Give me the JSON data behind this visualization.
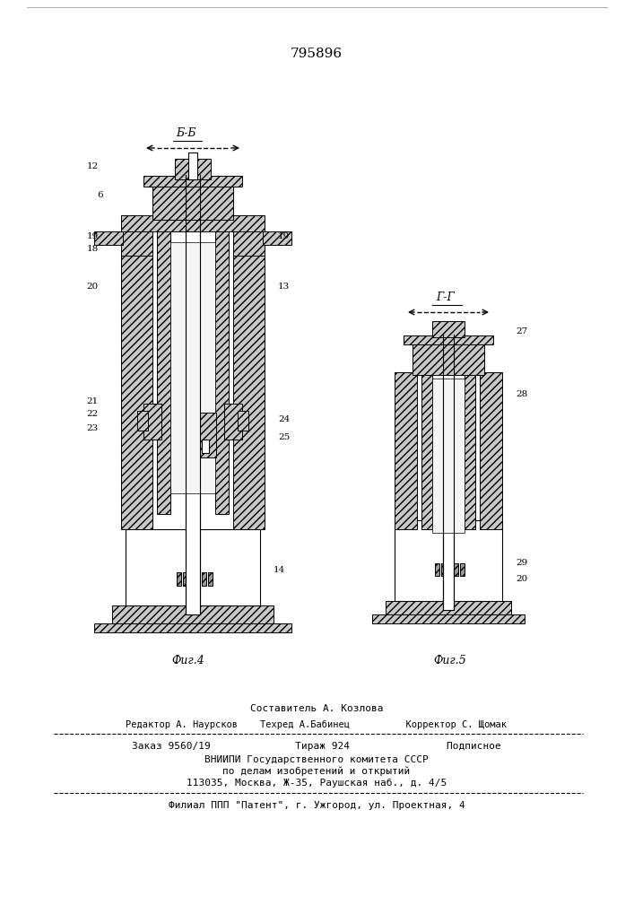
{
  "patent_number": "795896",
  "fig4_label": "Фиг.4",
  "fig5_label": "Фиг.5",
  "section_bb": "Б-Б",
  "section_gg": "Г-Г",
  "composer_line": "Составитель А. Козлова",
  "editor_line": "Редактор А. Наурсков    Техред А.Бабинец          Корректор С. Щомак",
  "order_line": "Заказ 9560/19              Тираж 924                Подписное",
  "org_line1": "ВНИИПИ Государственного комитета СССР",
  "org_line2": "по делам изобретений и открытий",
  "org_line3": "113035, Москва, Ж-35, Раушская наб., д. 4/5",
  "branch_line": "Филиал ППП \"Патент\", г. Ужгород, ул. Проектная, 4",
  "bg_color": "#ffffff",
  "line_color": "#000000",
  "hatch_color": "#555555"
}
